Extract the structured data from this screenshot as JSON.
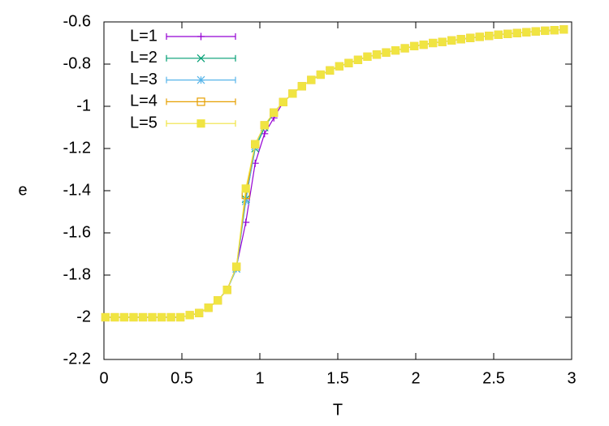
{
  "chart_data": {
    "type": "line",
    "xlabel": "T",
    "ylabel": "e",
    "x": [
      0.01,
      0.07,
      0.13,
      0.19,
      0.25,
      0.31,
      0.37,
      0.43,
      0.49,
      0.55,
      0.61,
      0.67,
      0.73,
      0.79,
      0.85,
      0.91,
      0.97,
      1.03,
      1.09,
      1.15,
      1.21,
      1.27,
      1.33,
      1.39,
      1.45,
      1.51,
      1.57,
      1.63,
      1.69,
      1.75,
      1.81,
      1.87,
      1.93,
      1.99,
      2.05,
      2.11,
      2.17,
      2.23,
      2.29,
      2.35,
      2.41,
      2.47,
      2.53,
      2.59,
      2.65,
      2.71,
      2.77,
      2.83,
      2.89,
      2.95
    ],
    "series": [
      {
        "name": "L=1",
        "color": "#9400d3",
        "marker": "plus",
        "values": [
          -2,
          -2,
          -2,
          -2,
          -2,
          -2,
          -2,
          -2,
          -2,
          -1.99,
          -1.98,
          -1.955,
          -1.92,
          -1.87,
          -1.76,
          -1.55,
          -1.27,
          -1.13,
          -1.055,
          -0.98,
          -0.94,
          -0.905,
          -0.875,
          -0.85,
          -0.83,
          -0.81,
          -0.795,
          -0.78,
          -0.765,
          -0.755,
          -0.745,
          -0.735,
          -0.725,
          -0.715,
          -0.708,
          -0.7,
          -0.695,
          -0.688,
          -0.682,
          -0.676,
          -0.671,
          -0.666,
          -0.661,
          -0.657,
          -0.653,
          -0.649,
          -0.645,
          -0.642,
          -0.639,
          -0.636
        ]
      },
      {
        "name": "L=2",
        "color": "#009e73",
        "marker": "cross",
        "values": [
          -2,
          -2,
          -2,
          -2,
          -2,
          -2,
          -2,
          -2,
          -2,
          -1.99,
          -1.98,
          -1.955,
          -1.92,
          -1.87,
          -1.77,
          -1.44,
          -1.2,
          -1.1,
          -1.03,
          -0.98,
          -0.94,
          -0.905,
          -0.875,
          -0.85,
          -0.83,
          -0.81,
          -0.795,
          -0.78,
          -0.765,
          -0.755,
          -0.745,
          -0.735,
          -0.725,
          -0.715,
          -0.708,
          -0.7,
          -0.695,
          -0.688,
          -0.682,
          -0.676,
          -0.671,
          -0.666,
          -0.661,
          -0.657,
          -0.653,
          -0.649,
          -0.645,
          -0.642,
          -0.639,
          -0.636
        ]
      },
      {
        "name": "L=3",
        "color": "#56b4e9",
        "marker": "star",
        "values": [
          -2,
          -2,
          -2,
          -2,
          -2,
          -2,
          -2,
          -2,
          -2,
          -1.99,
          -1.98,
          -1.955,
          -1.92,
          -1.87,
          -1.77,
          -1.45,
          -1.19,
          -1.09,
          -1.03,
          -0.98,
          -0.94,
          -0.905,
          -0.875,
          -0.85,
          -0.83,
          -0.81,
          -0.795,
          -0.78,
          -0.765,
          -0.755,
          -0.745,
          -0.735,
          -0.725,
          -0.715,
          -0.708,
          -0.7,
          -0.695,
          -0.688,
          -0.682,
          -0.676,
          -0.671,
          -0.666,
          -0.661,
          -0.657,
          -0.653,
          -0.649,
          -0.645,
          -0.642,
          -0.639,
          -0.636
        ]
      },
      {
        "name": "L=4",
        "color": "#e69f00",
        "marker": "square-open",
        "values": [
          -2,
          -2,
          -2,
          -2,
          -2,
          -2,
          -2,
          -2,
          -2,
          -1.99,
          -1.98,
          -1.955,
          -1.92,
          -1.87,
          -1.76,
          -1.42,
          -1.18,
          -1.09,
          -1.03,
          -0.98,
          -0.94,
          -0.905,
          -0.875,
          -0.85,
          -0.83,
          -0.81,
          -0.795,
          -0.78,
          -0.765,
          -0.755,
          -0.745,
          -0.735,
          -0.725,
          -0.715,
          -0.708,
          -0.7,
          -0.695,
          -0.688,
          -0.682,
          -0.676,
          -0.671,
          -0.666,
          -0.661,
          -0.657,
          -0.653,
          -0.649,
          -0.645,
          -0.642,
          -0.639,
          -0.636
        ]
      },
      {
        "name": "L=5",
        "color": "#f0e442",
        "marker": "square",
        "values": [
          -2,
          -2,
          -2,
          -2,
          -2,
          -2,
          -2,
          -2,
          -2,
          -1.99,
          -1.98,
          -1.955,
          -1.92,
          -1.87,
          -1.76,
          -1.39,
          -1.18,
          -1.09,
          -1.03,
          -0.98,
          -0.94,
          -0.905,
          -0.875,
          -0.85,
          -0.83,
          -0.81,
          -0.795,
          -0.78,
          -0.765,
          -0.755,
          -0.745,
          -0.735,
          -0.725,
          -0.715,
          -0.708,
          -0.7,
          -0.695,
          -0.688,
          -0.682,
          -0.676,
          -0.671,
          -0.666,
          -0.661,
          -0.657,
          -0.653,
          -0.649,
          -0.645,
          -0.642,
          -0.639,
          -0.636
        ]
      }
    ],
    "xlim": [
      0,
      3
    ],
    "xticks": [
      0,
      0.5,
      1,
      1.5,
      2,
      2.5,
      3
    ],
    "ylim": [
      -2.2,
      -0.6
    ],
    "yticks": [
      -2.2,
      -2,
      -1.8,
      -1.6,
      -1.4,
      -1.2,
      -1,
      -0.8,
      -0.6
    ],
    "grid": false,
    "legend": "top-left"
  }
}
